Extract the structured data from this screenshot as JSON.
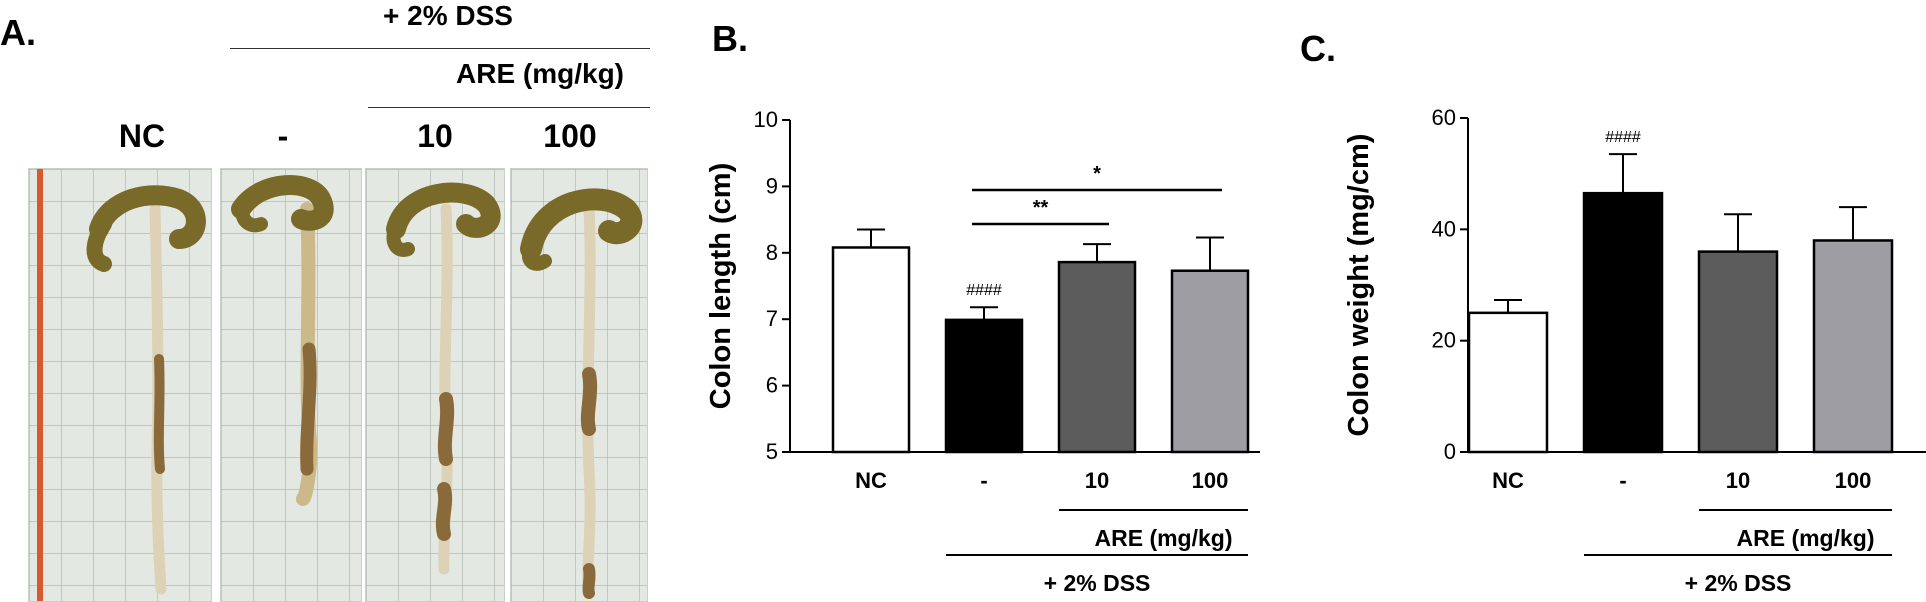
{
  "panel_a": {
    "letter": "A.",
    "dss_header": "+ 2% DSS",
    "are_header": "ARE (mg/kg)",
    "lanes": [
      "NC",
      "-",
      "10",
      "100"
    ]
  },
  "chart_data": [
    {
      "panel": "B.",
      "type": "bar",
      "categories": [
        "NC",
        "-",
        "10",
        "100"
      ],
      "values": [
        8.08,
        6.99,
        7.86,
        7.73
      ],
      "errors": [
        0.27,
        0.19,
        0.27,
        0.5
      ],
      "ylabel": "Colon length (cm)",
      "ylim": [
        5,
        10
      ],
      "yticks": [
        5,
        6,
        7,
        8,
        9,
        10
      ],
      "bar_colors": [
        "#ffffff",
        "#000000",
        "#5c5c5c",
        "#9d9da3"
      ],
      "annotations": [
        {
          "category": "-",
          "text": "####"
        }
      ],
      "significance": [
        {
          "from": "-",
          "to": "10",
          "text": "**"
        },
        {
          "from": "-",
          "to": "100",
          "text": "*"
        }
      ],
      "group_labels": {
        "are": "ARE (mg/kg)",
        "dss": "+ 2% DSS"
      }
    },
    {
      "panel": "C.",
      "type": "bar",
      "categories": [
        "NC",
        "-",
        "10",
        "100"
      ],
      "values": [
        25.0,
        46.5,
        36.0,
        38.0
      ],
      "errors": [
        2.3,
        7.0,
        6.7,
        6.0
      ],
      "ylabel": "Colon weight (mg/cm)",
      "ylim": [
        0,
        60
      ],
      "yticks": [
        0,
        20,
        40,
        60
      ],
      "bar_colors": [
        "#ffffff",
        "#000000",
        "#5c5c5c",
        "#9d9da3"
      ],
      "annotations": [
        {
          "category": "-",
          "text": "####"
        }
      ],
      "significance": [],
      "group_labels": {
        "are": "ARE (mg/kg)",
        "dss": "+ 2% DSS"
      }
    }
  ]
}
